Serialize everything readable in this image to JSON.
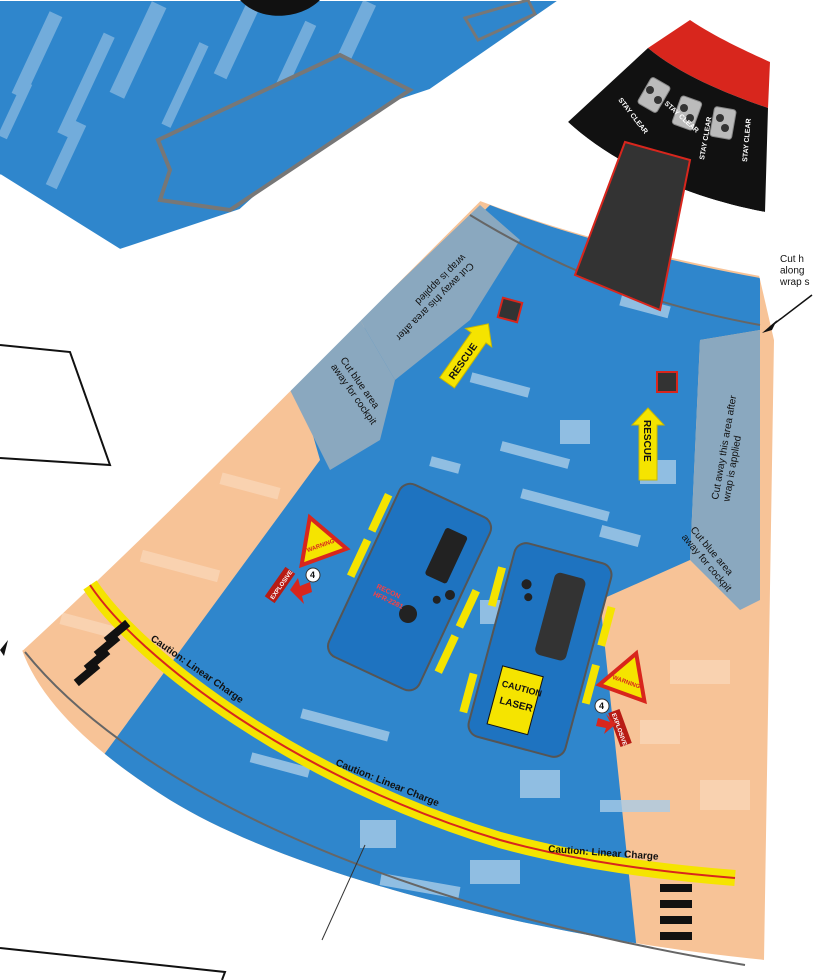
{
  "sheet": {
    "colors": {
      "blue": "#2f86cc",
      "blue_dark": "#1d6fb3",
      "tan": "#f7c397",
      "grey_blue": "#8aa8bf",
      "yellow": "#f5e400",
      "red": "#d8261d",
      "black": "#111111",
      "panel_blue": "#1e73c0"
    },
    "stay_clear": [
      "STAY CLEAR",
      "STAY CLEAR",
      "STAY CLEAR",
      "STAY CLEAR"
    ],
    "side_note": "Cut h\nalong\nwrap s",
    "rescue": [
      "RESCUE",
      "RESCUE"
    ],
    "notes": {
      "cut_after_left": "Cut away this area after\nwrap is applied",
      "cut_blue_left": "Cut blue area\naway for cockpit",
      "cut_after_right": "Cut away this area after\nwrap is applied",
      "cut_blue_right": "Cut blue area\naway for cockpit"
    },
    "panel_left": {
      "label": "RECON\nHFR-2281"
    },
    "warning": [
      "WARNING",
      "WARNING"
    ],
    "explosive": [
      "EXPLOSIVE",
      "EXPLOSIVE"
    ],
    "caution_laser": {
      "top": "CAUTION",
      "bottom": "LASER"
    },
    "linear_charge": [
      "Caution: Linear Charge",
      "Caution: Linear Charge",
      "Caution: Linear Charge"
    ],
    "number_badge": "4"
  }
}
